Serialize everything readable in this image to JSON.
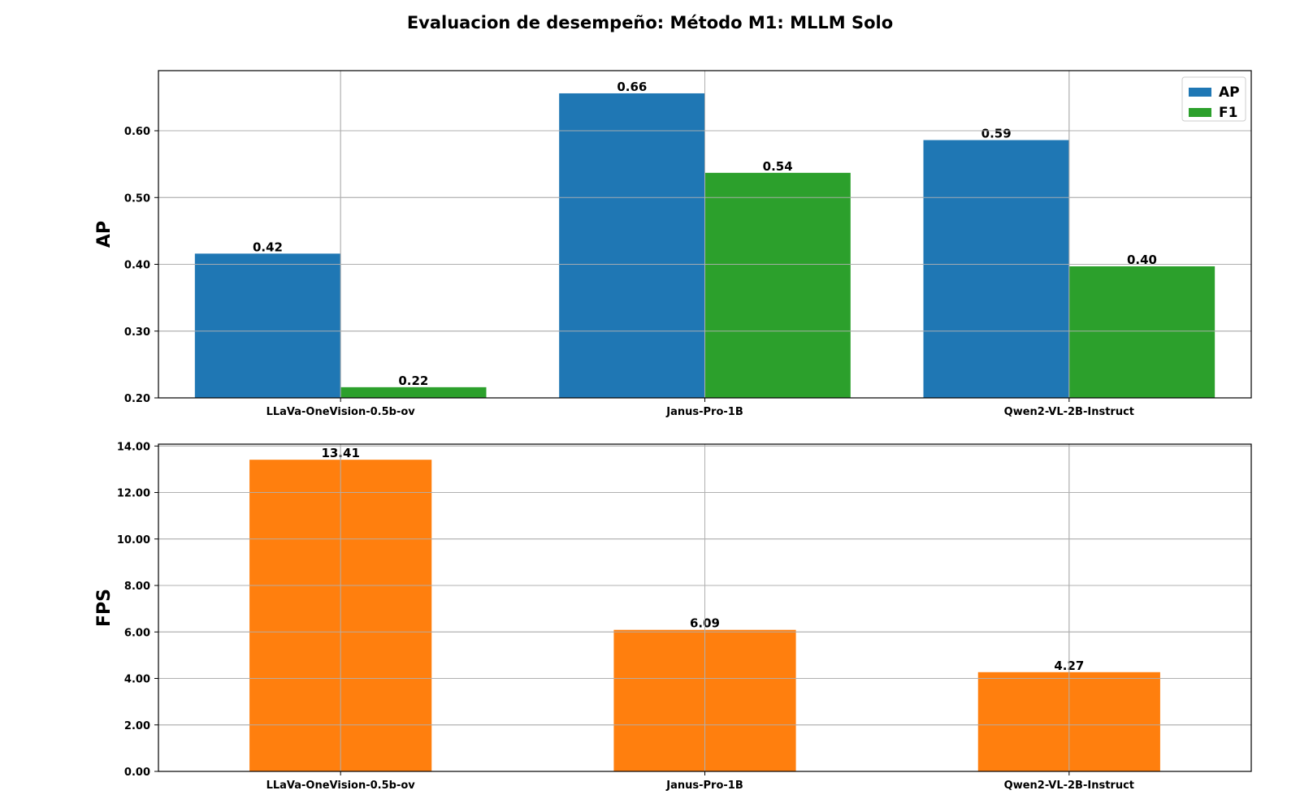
{
  "title": "Evaluacion de desempeño: Método M1: MLLM Solo",
  "colors": {
    "ap": "#1f77b4",
    "f1": "#2ca02c",
    "fps": "#ff7f0e",
    "grid": "#b0b0b0",
    "axis": "#000000"
  },
  "chart_data": [
    {
      "type": "bar",
      "categories": [
        "LLaVa-OneVision-0.5b-ov",
        "Janus-Pro-1B",
        "Qwen2-VL-2B-Instruct"
      ],
      "series": [
        {
          "name": "AP",
          "values": [
            0.416,
            0.656,
            0.586
          ],
          "labels": [
            "0.42",
            "0.66",
            "0.59"
          ]
        },
        {
          "name": "F1",
          "values": [
            0.216,
            0.537,
            0.397
          ],
          "labels": [
            "0.22",
            "0.54",
            "0.40"
          ]
        }
      ],
      "ylabel": "AP",
      "ylim": [
        0.2,
        0.69
      ],
      "yticks": [
        0.2,
        0.3,
        0.4,
        0.5,
        0.6
      ],
      "ytick_labels": [
        "0.20",
        "0.30",
        "0.40",
        "0.50",
        "0.60"
      ],
      "grid": true,
      "legend": "top-right"
    },
    {
      "type": "bar",
      "categories": [
        "LLaVa-OneVision-0.5b-ov",
        "Janus-Pro-1B",
        "Qwen2-VL-2B-Instruct"
      ],
      "series": [
        {
          "values": [
            13.41,
            6.09,
            4.27
          ],
          "labels": [
            "13.41",
            "6.09",
            "4.27"
          ]
        }
      ],
      "ylabel": "FPS",
      "ylim": [
        0,
        14.08
      ],
      "yticks": [
        0,
        2,
        4,
        6,
        8,
        10,
        12,
        14
      ],
      "ytick_labels": [
        "0.00",
        "2.00",
        "4.00",
        "6.00",
        "8.00",
        "10.00",
        "12.00",
        "14.00"
      ],
      "grid": true
    }
  ]
}
